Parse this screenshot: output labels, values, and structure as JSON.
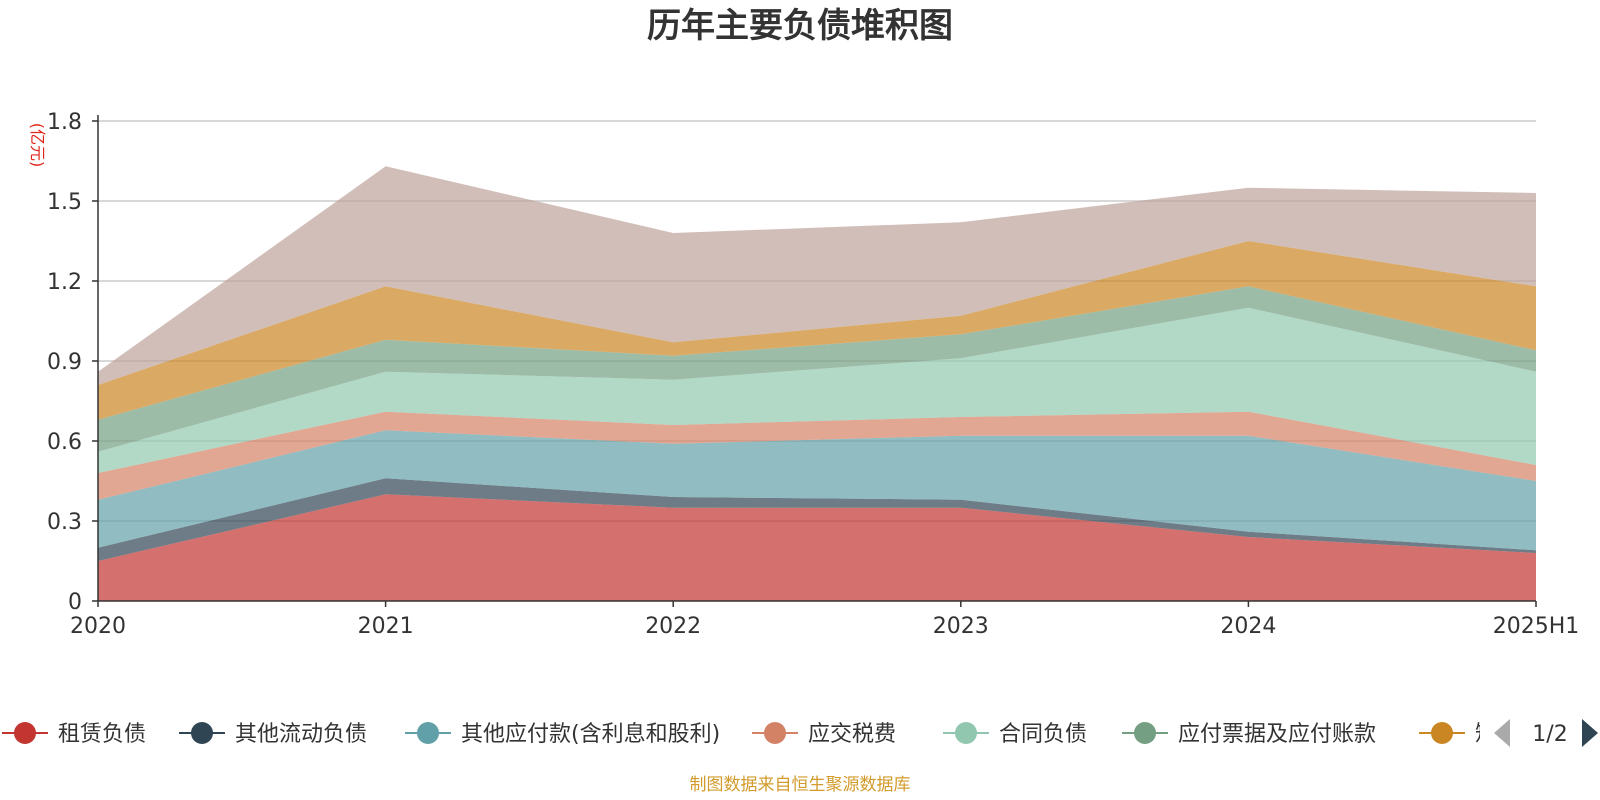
{
  "colors": {
    "axis": "#333333",
    "grid": "#cccccc",
    "unit": "#e0261b",
    "source": "#d29b2c",
    "pager_disabled": "#aaaaaa",
    "pager_active": "#2f4554"
  },
  "chart_data": {
    "type": "area",
    "stacked": true,
    "title": "历年主要负债堆积图",
    "ylabel": "(亿元)",
    "xlabel": "",
    "categories": [
      "2020",
      "2021",
      "2022",
      "2023",
      "2024",
      "2025H1"
    ],
    "ylim": [
      0,
      1.8
    ],
    "yticks": [
      "0",
      "0.3",
      "0.6",
      "0.9",
      "1.2",
      "1.5",
      "1.8"
    ],
    "grid": true,
    "series": [
      {
        "name": "租赁负债",
        "color": "#c23531",
        "values": [
          0.15,
          0.4,
          0.35,
          0.35,
          0.24,
          0.18
        ]
      },
      {
        "name": "其他流动负债",
        "color": "#2f4554",
        "values": [
          0.05,
          0.06,
          0.04,
          0.03,
          0.02,
          0.01
        ]
      },
      {
        "name": "其他应付款(含利息和股利)",
        "color": "#61a0a8",
        "values": [
          0.18,
          0.18,
          0.2,
          0.24,
          0.36,
          0.26
        ]
      },
      {
        "name": "应交税费",
        "color": "#d48265",
        "values": [
          0.1,
          0.07,
          0.07,
          0.07,
          0.09,
          0.06
        ]
      },
      {
        "name": "合同负债",
        "color": "#91c7ae",
        "values": [
          0.08,
          0.15,
          0.17,
          0.22,
          0.39,
          0.35
        ]
      },
      {
        "name": "应付票据及应付账款",
        "color": "#749f83",
        "values": [
          0.12,
          0.12,
          0.09,
          0.09,
          0.08,
          0.08
        ]
      },
      {
        "name": "短期借款",
        "color": "#ca8622",
        "values": [
          0.13,
          0.2,
          0.05,
          0.07,
          0.17,
          0.24
        ]
      },
      {
        "name": "",
        "color": "#bda29a",
        "values": [
          0.05,
          0.45,
          0.41,
          0.35,
          0.2,
          0.35
        ]
      }
    ]
  },
  "legend": {
    "items": [
      "租赁负债",
      "其他流动负债",
      "其他应付款(含利息和股利)",
      "应交税费",
      "合同负债",
      "应付票据及应付账款",
      "短"
    ],
    "page_indicator": "1/2"
  },
  "source_note": "制图数据来自恒生聚源数据库"
}
